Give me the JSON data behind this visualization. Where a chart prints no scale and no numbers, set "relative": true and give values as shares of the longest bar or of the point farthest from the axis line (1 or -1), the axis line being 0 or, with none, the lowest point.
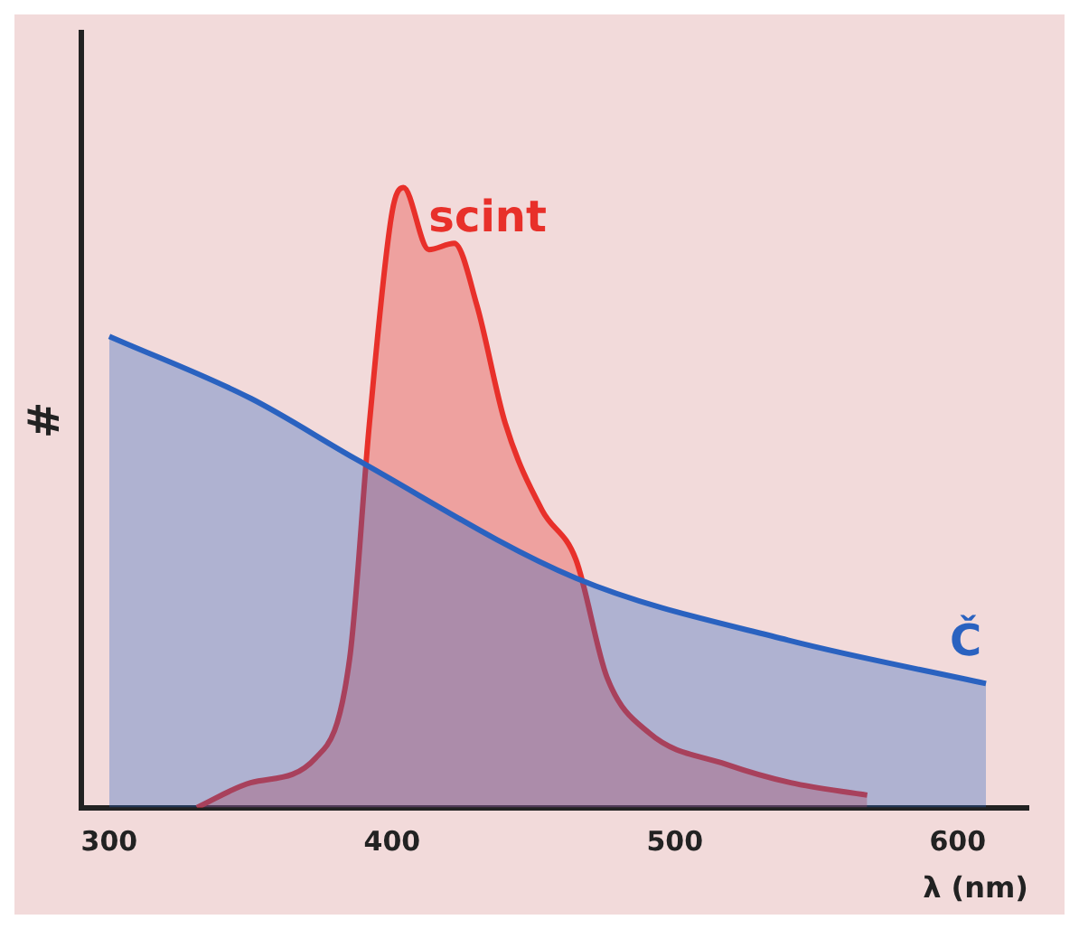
{
  "chart_data": {
    "type": "area",
    "xlabel": "λ (nm)",
    "ylabel": "#",
    "relative": true,
    "xlim": [
      290,
      625
    ],
    "xticks": [
      300,
      400,
      500,
      600
    ],
    "grid": false,
    "legend": false,
    "marker": "none",
    "series": [
      {
        "name": "Č",
        "color": "#2a62c0",
        "x": [
          300,
          350,
          388,
          465,
          540,
          610
        ],
        "values": [
          0.76,
          0.66,
          0.56,
          0.37,
          0.27,
          0.2
        ]
      },
      {
        "name": "scint",
        "color": "#e8302a",
        "x": [
          331,
          350,
          373,
          385,
          392,
          400,
          404,
          413,
          422,
          430,
          440,
          453,
          465,
          476,
          491,
          518,
          541,
          568
        ],
        "values": [
          0,
          0.04,
          0.08,
          0.24,
          0.62,
          0.96,
          1,
          0.9,
          0.91,
          0.81,
          0.62,
          0.48,
          0.4,
          0.21,
          0.12,
          0.07,
          0.04,
          0.02
        ]
      }
    ]
  }
}
